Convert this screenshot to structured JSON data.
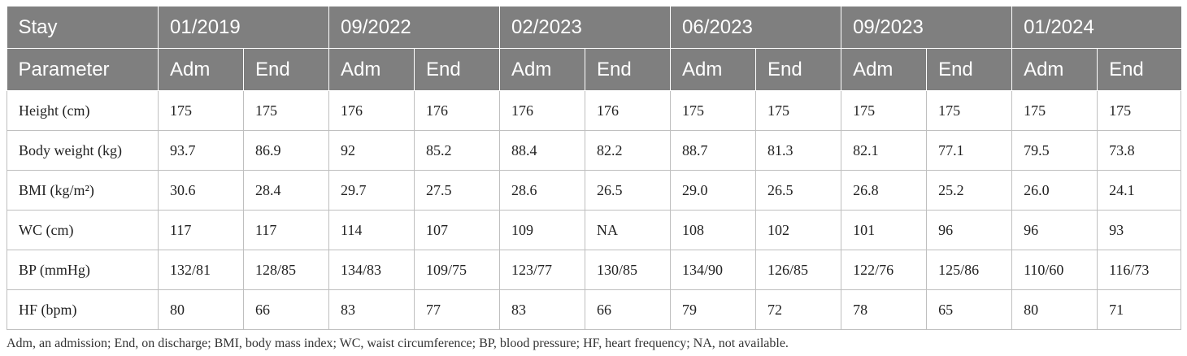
{
  "header": {
    "row1": [
      "Stay",
      "01/2019",
      "09/2022",
      "02/2023",
      "06/2023",
      "09/2023",
      "01/2024"
    ],
    "row2": [
      "Parameter",
      "Adm",
      "End",
      "Adm",
      "End",
      "Adm",
      "End",
      "Adm",
      "End",
      "Adm",
      "End",
      "Adm",
      "End"
    ]
  },
  "rows": [
    [
      "Height (cm)",
      "175",
      "175",
      "176",
      "176",
      "176",
      "176",
      "175",
      "175",
      "175",
      "175",
      "175",
      "175"
    ],
    [
      "Body weight (kg)",
      "93.7",
      "86.9",
      "92",
      "85.2",
      "88.4",
      "82.2",
      "88.7",
      "81.3",
      "82.1",
      "77.1",
      "79.5",
      "73.8"
    ],
    [
      "BMI (kg/m²)",
      "30.6",
      "28.4",
      "29.7",
      "27.5",
      "28.6",
      "26.5",
      "29.0",
      "26.5",
      "26.8",
      "25.2",
      "26.0",
      "24.1"
    ],
    [
      "WC (cm)",
      "117",
      "117",
      "114",
      "107",
      "109",
      "NA",
      "108",
      "102",
      "101",
      "96",
      "96",
      "93"
    ],
    [
      "BP (mmHg)",
      "132/81",
      "128/85",
      "134/83",
      "109/75",
      "123/77",
      "130/85",
      "134/90",
      "126/85",
      "122/76",
      "125/86",
      "110/60",
      "116/73"
    ],
    [
      "HF (bpm)",
      "80",
      "66",
      "83",
      "77",
      "83",
      "66",
      "79",
      "72",
      "78",
      "65",
      "80",
      "71"
    ]
  ],
  "footnote": "Adm, an admission; End, on discharge; BMI, body mass index; WC, waist circumference; BP, blood pressure; HF, heart frequency; NA, not available."
}
